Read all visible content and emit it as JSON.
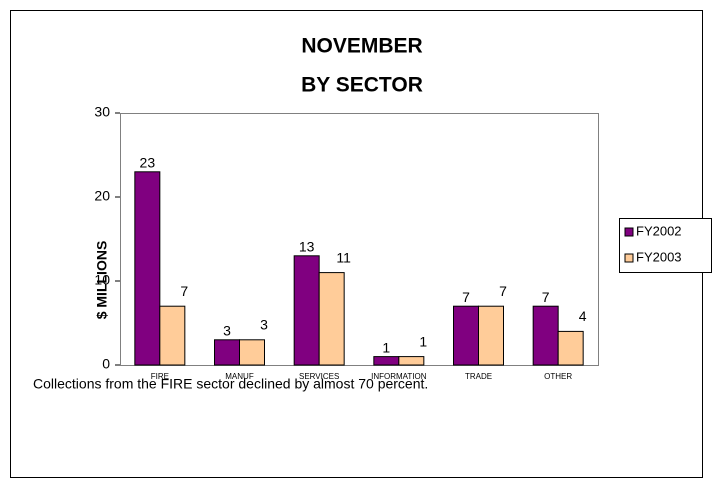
{
  "chart_data": {
    "type": "bar",
    "title": [
      "NOVEMBER",
      "BY SECTOR"
    ],
    "y_label": "$ MILLIONS",
    "categories": [
      "FIRE",
      "MANUF",
      "SERVICES",
      "INFORMATION",
      "TRADE",
      "OTHER"
    ],
    "series": [
      {
        "name": "FY2002",
        "color": "#800080",
        "values": [
          23,
          3,
          13,
          1,
          7,
          7
        ]
      },
      {
        "name": "FY2003",
        "color": "#ffcc99",
        "values": [
          7,
          3,
          11,
          1,
          7,
          4
        ]
      }
    ],
    "ylim": [
      0,
      30
    ],
    "yticks": [
      0,
      10,
      20,
      30
    ],
    "grid": false,
    "legend": "right",
    "caption": "Collections from the FIRE sector declined by almost 70 percent."
  }
}
